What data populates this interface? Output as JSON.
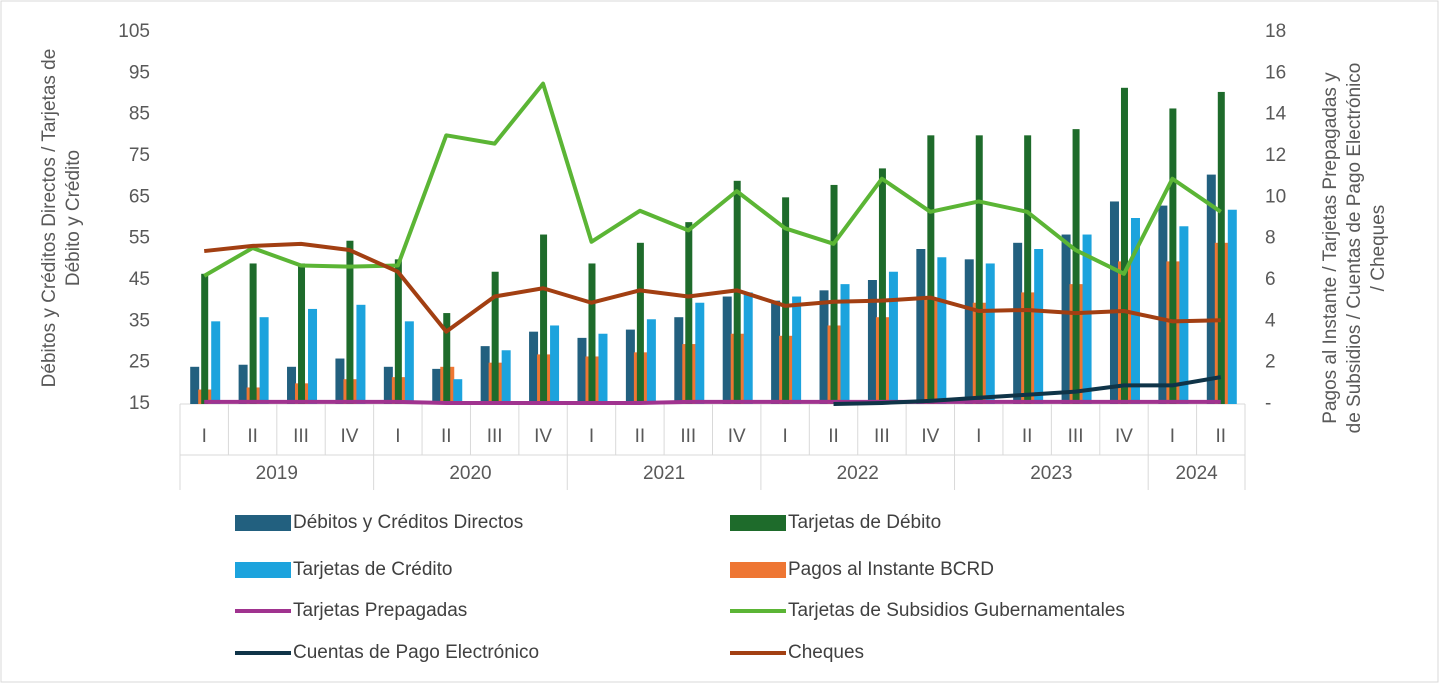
{
  "chart_data": {
    "type": "combo",
    "category_groups": [
      {
        "label": "2019",
        "categories": [
          "I",
          "II",
          "III",
          "IV"
        ]
      },
      {
        "label": "2020",
        "categories": [
          "I",
          "II",
          "III",
          "IV"
        ]
      },
      {
        "label": "2021",
        "categories": [
          "I",
          "II",
          "III",
          "IV"
        ]
      },
      {
        "label": "2022",
        "categories": [
          "I",
          "II",
          "III",
          "IV"
        ]
      },
      {
        "label": "2023",
        "categories": [
          "I",
          "II",
          "III",
          "IV"
        ]
      },
      {
        "label": "2024",
        "categories": [
          "I",
          "II"
        ]
      }
    ],
    "y_label": [
      "Débitos y Créditos Directos / Tarjetas de",
      "Débito y Crédito"
    ],
    "y2_label": [
      "Pagos al Instante / Tarjetas Prepagadas y",
      "de Subsidios / Cuentas de Pago Electrónico",
      "/ Cheques"
    ],
    "ylim": [
      15,
      105
    ],
    "yticks": [
      15,
      25,
      35,
      45,
      55,
      65,
      75,
      85,
      95,
      105
    ],
    "y2lim": [
      0,
      18
    ],
    "y2ticks": [
      {
        "value": 0,
        "label": "-"
      },
      2,
      4,
      6,
      8,
      10,
      12,
      14,
      16,
      18
    ],
    "series": [
      {
        "name": "Débitos y Créditos Directos",
        "kind": "bar",
        "color": "#22607f",
        "values": [
          24,
          24.5,
          24,
          26,
          24,
          23.5,
          29,
          32.5,
          31,
          33,
          36,
          41,
          40,
          42.5,
          45,
          52.5,
          50,
          54,
          56,
          64,
          63,
          70.5
        ]
      },
      {
        "name": "Tarjetas de Débito",
        "kind": "bar",
        "color": "#1e6b2b",
        "values": [
          46.5,
          49,
          49,
          54.5,
          50,
          37,
          47,
          56,
          49,
          54,
          59,
          69,
          65,
          68,
          72,
          80,
          80,
          80,
          81.5,
          91.5,
          86.5,
          90.5
        ]
      },
      {
        "name": "Tarjetas de Crédito",
        "kind": "bar",
        "color": "#1ca3dd",
        "values": [
          35,
          36,
          38,
          39,
          35,
          21,
          28,
          34,
          32,
          35.5,
          39.5,
          42,
          41,
          44,
          47,
          50.5,
          49,
          52.5,
          56,
          60,
          58,
          62
        ]
      },
      {
        "name": "Pagos al Instante BCRD",
        "kind": "bar",
        "color": "#ee7633",
        "values": [
          18.5,
          19,
          20,
          21,
          21.5,
          24,
          25,
          27,
          26.5,
          27.5,
          29.5,
          32,
          31.5,
          34,
          36,
          40.5,
          39.5,
          42,
          44,
          49.5,
          49.5,
          54
        ]
      },
      {
        "name": "Tarjetas Prepagadas",
        "kind": "line",
        "axis": "y2",
        "color": "#a0338f",
        "values": [
          0.1,
          0.1,
          0.1,
          0.1,
          0.1,
          0.05,
          0.05,
          0.05,
          0.05,
          0.05,
          0.1,
          0.1,
          0.1,
          0.1,
          0.1,
          0.1,
          0.1,
          0.1,
          0.1,
          0.1,
          0.1,
          0.1
        ]
      },
      {
        "name": "Tarjetas de Subsidios Gubernamentales",
        "kind": "line",
        "axis": "y2",
        "color": "#5bb535",
        "values": [
          6.2,
          7.55,
          6.7,
          6.65,
          6.7,
          13,
          12.6,
          15.5,
          7.85,
          9.35,
          8.4,
          10.3,
          8.5,
          7.75,
          10.9,
          9.3,
          9.8,
          9.3,
          7.45,
          6.3,
          10.9,
          9.3
        ]
      },
      {
        "name": "Cuentas de Pago Electrónico",
        "kind": "line",
        "axis": "y2",
        "color": "#0f3448",
        "values": [
          null,
          null,
          null,
          null,
          null,
          null,
          null,
          null,
          null,
          null,
          null,
          null,
          null,
          0,
          0.05,
          0.15,
          0.3,
          0.45,
          0.6,
          0.9,
          0.9,
          1.3
        ]
      },
      {
        "name": "Cheques",
        "kind": "line",
        "axis": "y2",
        "color": "#a23f12",
        "values": [
          7.4,
          7.65,
          7.75,
          7.45,
          6.4,
          3.5,
          5.2,
          5.6,
          4.9,
          5.5,
          5.2,
          5.5,
          4.75,
          4.95,
          5,
          5.15,
          4.5,
          4.55,
          4.4,
          4.5,
          4,
          4.05
        ]
      }
    ]
  }
}
